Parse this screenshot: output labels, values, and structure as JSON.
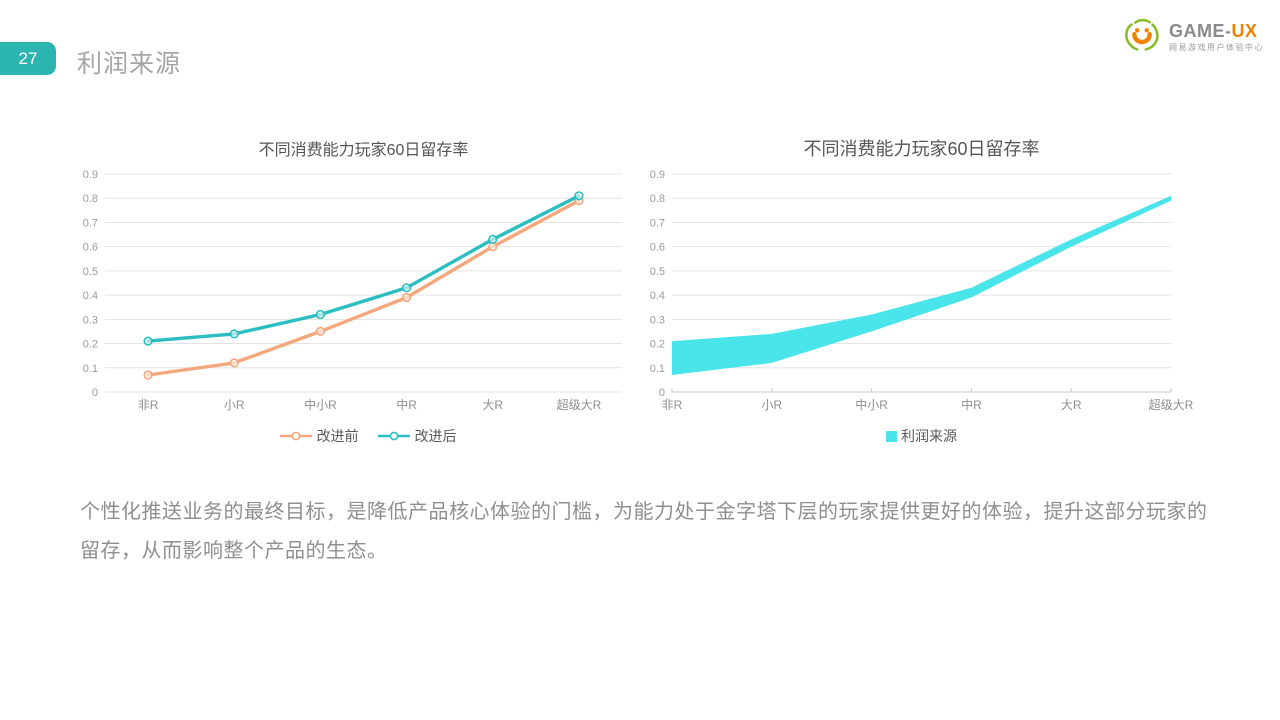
{
  "header": {
    "page_number": "27",
    "title": "利润来源"
  },
  "logo": {
    "name_primary": "GAME-",
    "name_accent": "UX",
    "subtitle": "网易游戏用户体验中心",
    "mark_colors": {
      "swirl_green": "#86bc25",
      "face_orange": "#f08300"
    }
  },
  "colors": {
    "accent_teal": "#2cb5b0",
    "grid_line": "#e3e3e3",
    "axis_line": "#c9c9c9"
  },
  "chart_data": [
    {
      "type": "line",
      "title": "不同消费能力玩家60日留存率",
      "categories": [
        "非R",
        "小R",
        "中小R",
        "中R",
        "大R",
        "超级大R"
      ],
      "series": [
        {
          "name": "改进前",
          "color": "#f2a87c",
          "values": [
            0.07,
            0.12,
            0.25,
            0.39,
            0.6,
            0.79
          ]
        },
        {
          "name": "改进后",
          "color": "#2bbec0",
          "values": [
            0.21,
            0.24,
            0.32,
            0.43,
            0.63,
            0.81
          ]
        }
      ],
      "ylim": [
        0,
        0.9
      ],
      "yticks": [
        0,
        0.1,
        0.2,
        0.3,
        0.4,
        0.5,
        0.6,
        0.7,
        0.8,
        0.9
      ],
      "grid": true,
      "legend_position": "bottom",
      "x_axis_style": "category-centered"
    },
    {
      "type": "area",
      "title": "不同消费能力玩家60日留存率",
      "categories": [
        "非R",
        "小R",
        "中小R",
        "中R",
        "大R",
        "超级大R"
      ],
      "series": [
        {
          "name": "利润来源",
          "color": "#4ae4eb",
          "lower": [
            0.07,
            0.12,
            0.25,
            0.39,
            0.6,
            0.79
          ],
          "upper": [
            0.21,
            0.24,
            0.32,
            0.43,
            0.63,
            0.81
          ]
        }
      ],
      "ylim": [
        0,
        0.9
      ],
      "yticks": [
        0,
        0.1,
        0.2,
        0.3,
        0.4,
        0.5,
        0.6,
        0.7,
        0.8,
        0.9
      ],
      "grid": true,
      "legend_position": "bottom",
      "x_axis_style": "edge-aligned"
    }
  ],
  "body": {
    "paragraph": "个性化推送业务的最终目标，是降低产品核心体验的门槛，为能力处于金字塔下层的玩家提供更好的体验，提升这部分玩家的留存，从而影响整个产品的生态。"
  }
}
